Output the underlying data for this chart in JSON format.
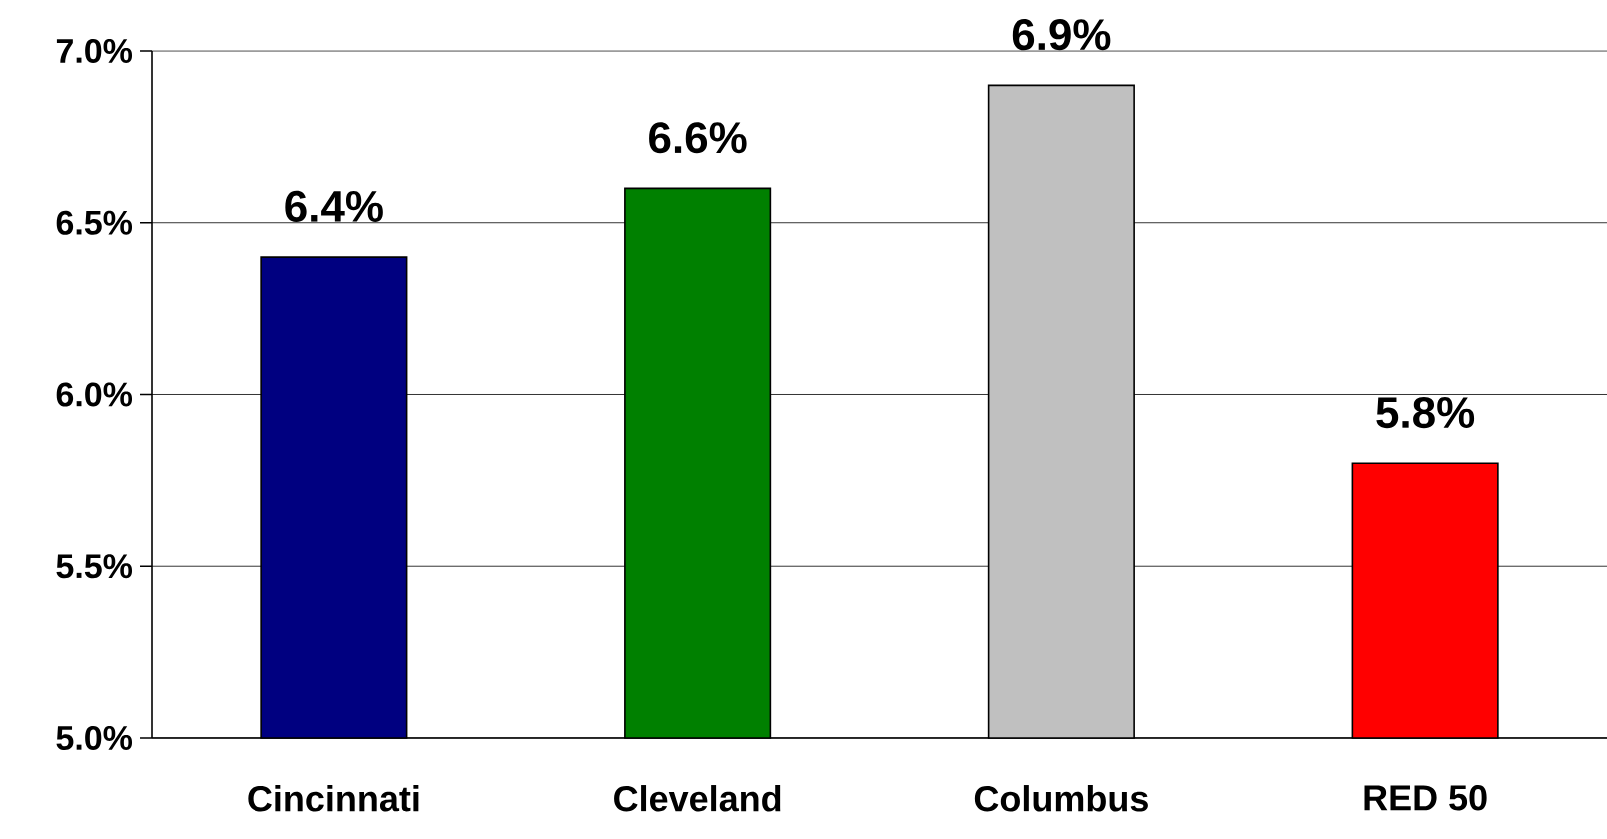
{
  "chart_data": {
    "type": "bar",
    "categories": [
      "Cincinnati",
      "Cleveland",
      "Columbus",
      "RED 50"
    ],
    "values": [
      6.4,
      6.6,
      6.9,
      5.8
    ],
    "colors": [
      "#000080",
      "#008000",
      "#c0c0c0",
      "#ff0000"
    ],
    "value_labels": [
      "6.4%",
      "6.6%",
      "6.9%",
      "5.8%"
    ],
    "ylim": [
      5,
      7
    ],
    "yticks": [
      {
        "value": 5,
        "label": "5.0%"
      },
      {
        "value": 5.5,
        "label": "5.5%"
      },
      {
        "value": 6,
        "label": "6.0%"
      },
      {
        "value": 6.5,
        "label": "6.5%"
      },
      {
        "value": 7,
        "label": "7.0%"
      }
    ],
    "grid": "y"
  }
}
